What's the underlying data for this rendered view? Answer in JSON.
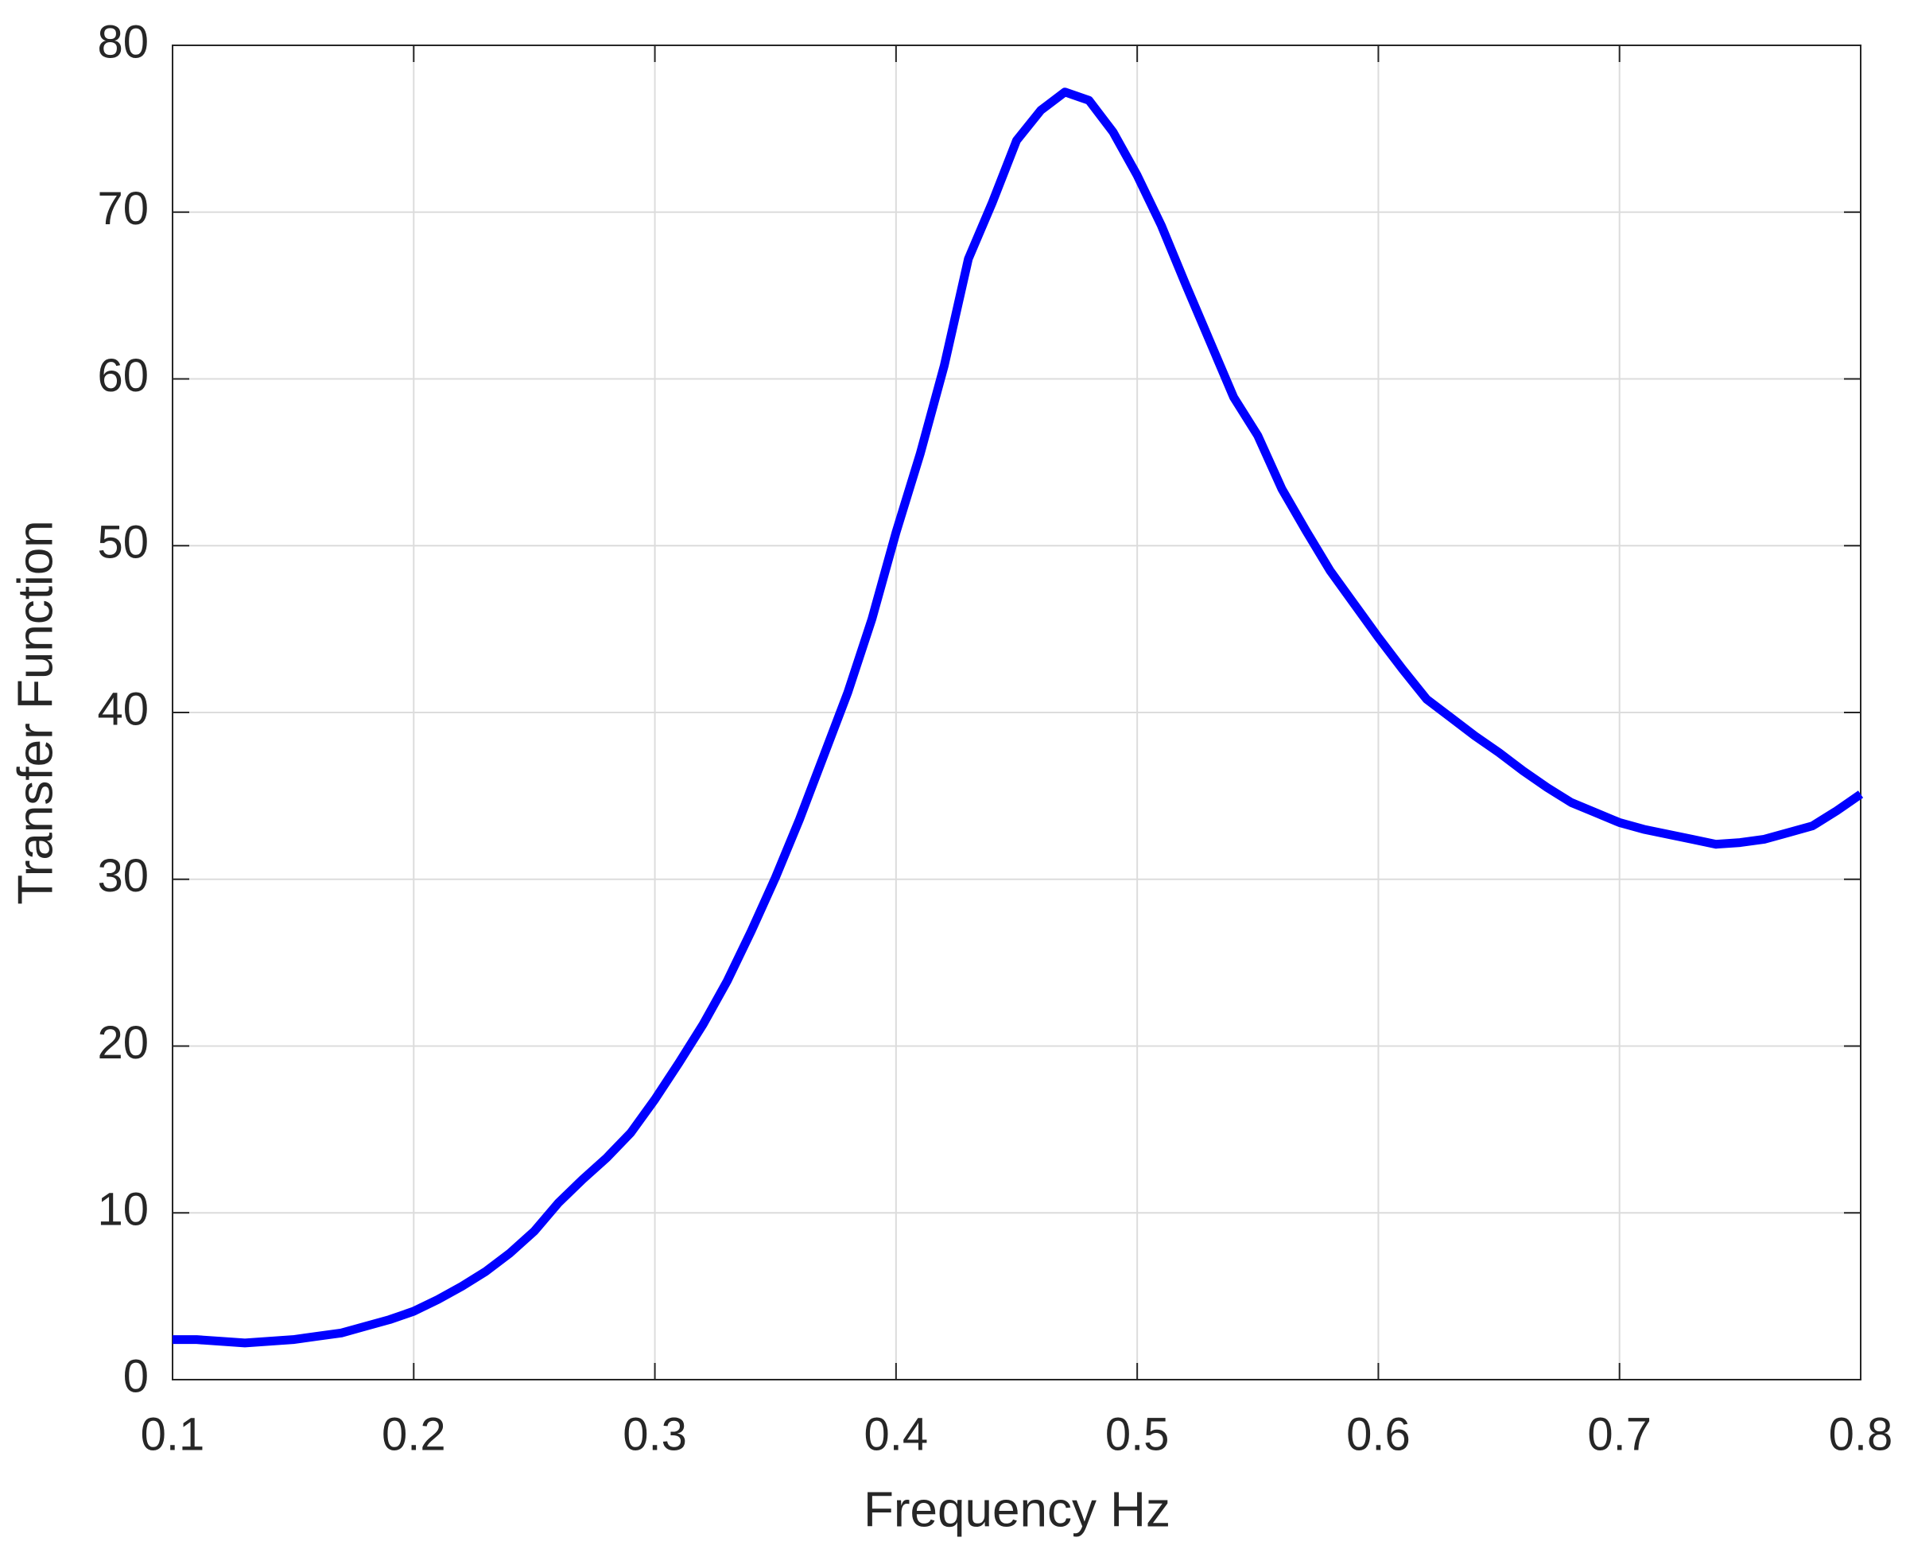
{
  "chart_data": {
    "type": "line",
    "x_label": "Frequency Hz",
    "y_label": "Transfer Function",
    "x": [
      0.1,
      0.11,
      0.12,
      0.13,
      0.14,
      0.15,
      0.16,
      0.17,
      0.18,
      0.19,
      0.2,
      0.21,
      0.22,
      0.23,
      0.24,
      0.25,
      0.26,
      0.27,
      0.28,
      0.29,
      0.3,
      0.31,
      0.32,
      0.33,
      0.34,
      0.35,
      0.36,
      0.37,
      0.38,
      0.39,
      0.4,
      0.41,
      0.42,
      0.43,
      0.44,
      0.45,
      0.46,
      0.47,
      0.48,
      0.49,
      0.5,
      0.51,
      0.52,
      0.53,
      0.54,
      0.55,
      0.56,
      0.57,
      0.58,
      0.59,
      0.6,
      0.61,
      0.62,
      0.63,
      0.64,
      0.65,
      0.66,
      0.67,
      0.68,
      0.69,
      0.7,
      0.71,
      0.72,
      0.73,
      0.74,
      0.75,
      0.76,
      0.77,
      0.78,
      0.79,
      0.8
    ],
    "series": [
      {
        "color": "#0000ff",
        "values": [
          2.4,
          2.4,
          2.3,
          2.2,
          2.3,
          2.4,
          2.6,
          2.8,
          3.2,
          3.6,
          4.1,
          4.8,
          5.6,
          6.5,
          7.6,
          8.9,
          10.6,
          12.0,
          13.3,
          14.8,
          16.8,
          19.0,
          21.3,
          23.9,
          26.9,
          30.1,
          33.6,
          37.4,
          41.2,
          45.6,
          50.8,
          55.5,
          60.8,
          67.2,
          70.6,
          74.3,
          76.1,
          77.2,
          76.7,
          74.8,
          72.2,
          69.2,
          65.7,
          62.3,
          58.9,
          56.6,
          53.4,
          50.9,
          48.5,
          46.5,
          44.5,
          42.6,
          40.8,
          39.7,
          38.6,
          37.6,
          36.5,
          35.5,
          34.6,
          34.0,
          33.4,
          33.0,
          32.7,
          32.4,
          32.1,
          32.2,
          32.4,
          32.8,
          33.2,
          34.1,
          35.1
        ]
      }
    ],
    "xlim": [
      0.1,
      0.8
    ],
    "xticks": [
      0.1,
      0.2,
      0.3,
      0.4,
      0.5,
      0.6,
      0.7,
      0.8
    ],
    "ylim": [
      0,
      80
    ],
    "yticks": [
      0,
      10,
      20,
      30,
      40,
      50,
      60,
      70,
      80
    ],
    "grid": true
  }
}
